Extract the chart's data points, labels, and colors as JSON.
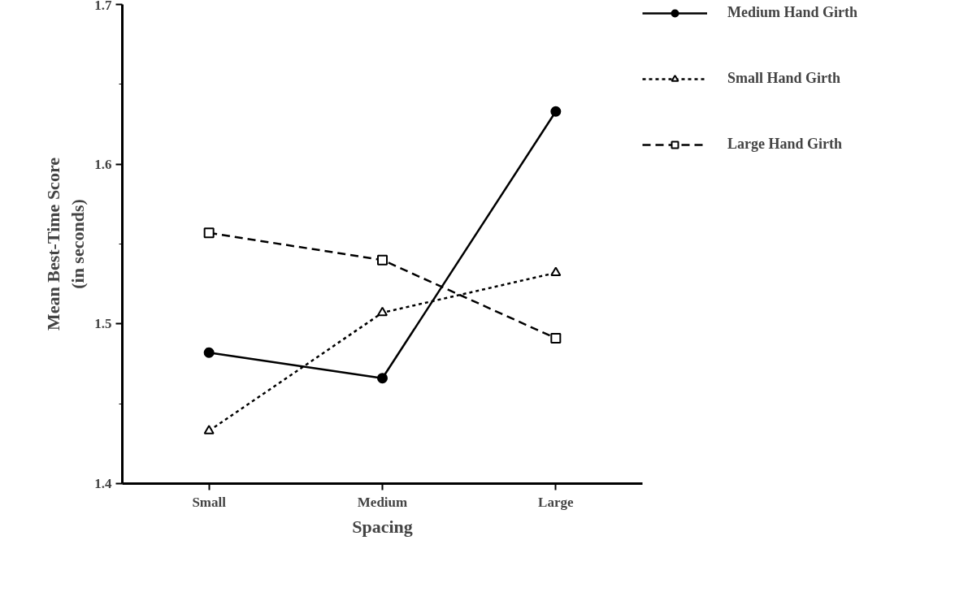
{
  "chart_data": {
    "type": "line",
    "xlabel": "Spacing",
    "ylabel": "Mean Best-Time Score\n(in seconds)",
    "categories": [
      "Small",
      "Medium",
      "Large"
    ],
    "series": [
      {
        "name": "Medium Hand Girth",
        "color": "#000000",
        "values": [
          1.482,
          1.466,
          1.633
        ],
        "marker": "circle",
        "line_style": "solid"
      },
      {
        "name": "Small Hand Girth",
        "color": "#000000",
        "values": [
          1.433,
          1.507,
          1.532
        ],
        "marker": "triangle",
        "line_style": "dotted"
      },
      {
        "name": "Large Hand Girth",
        "color": "#000000",
        "values": [
          1.557,
          1.54,
          1.491
        ],
        "marker": "square",
        "line_style": "dashed"
      }
    ],
    "ylim": [
      1.4,
      1.7
    ],
    "yticks": [
      1.4,
      1.5,
      1.6,
      1.7
    ],
    "grid": false,
    "legend": "right"
  }
}
